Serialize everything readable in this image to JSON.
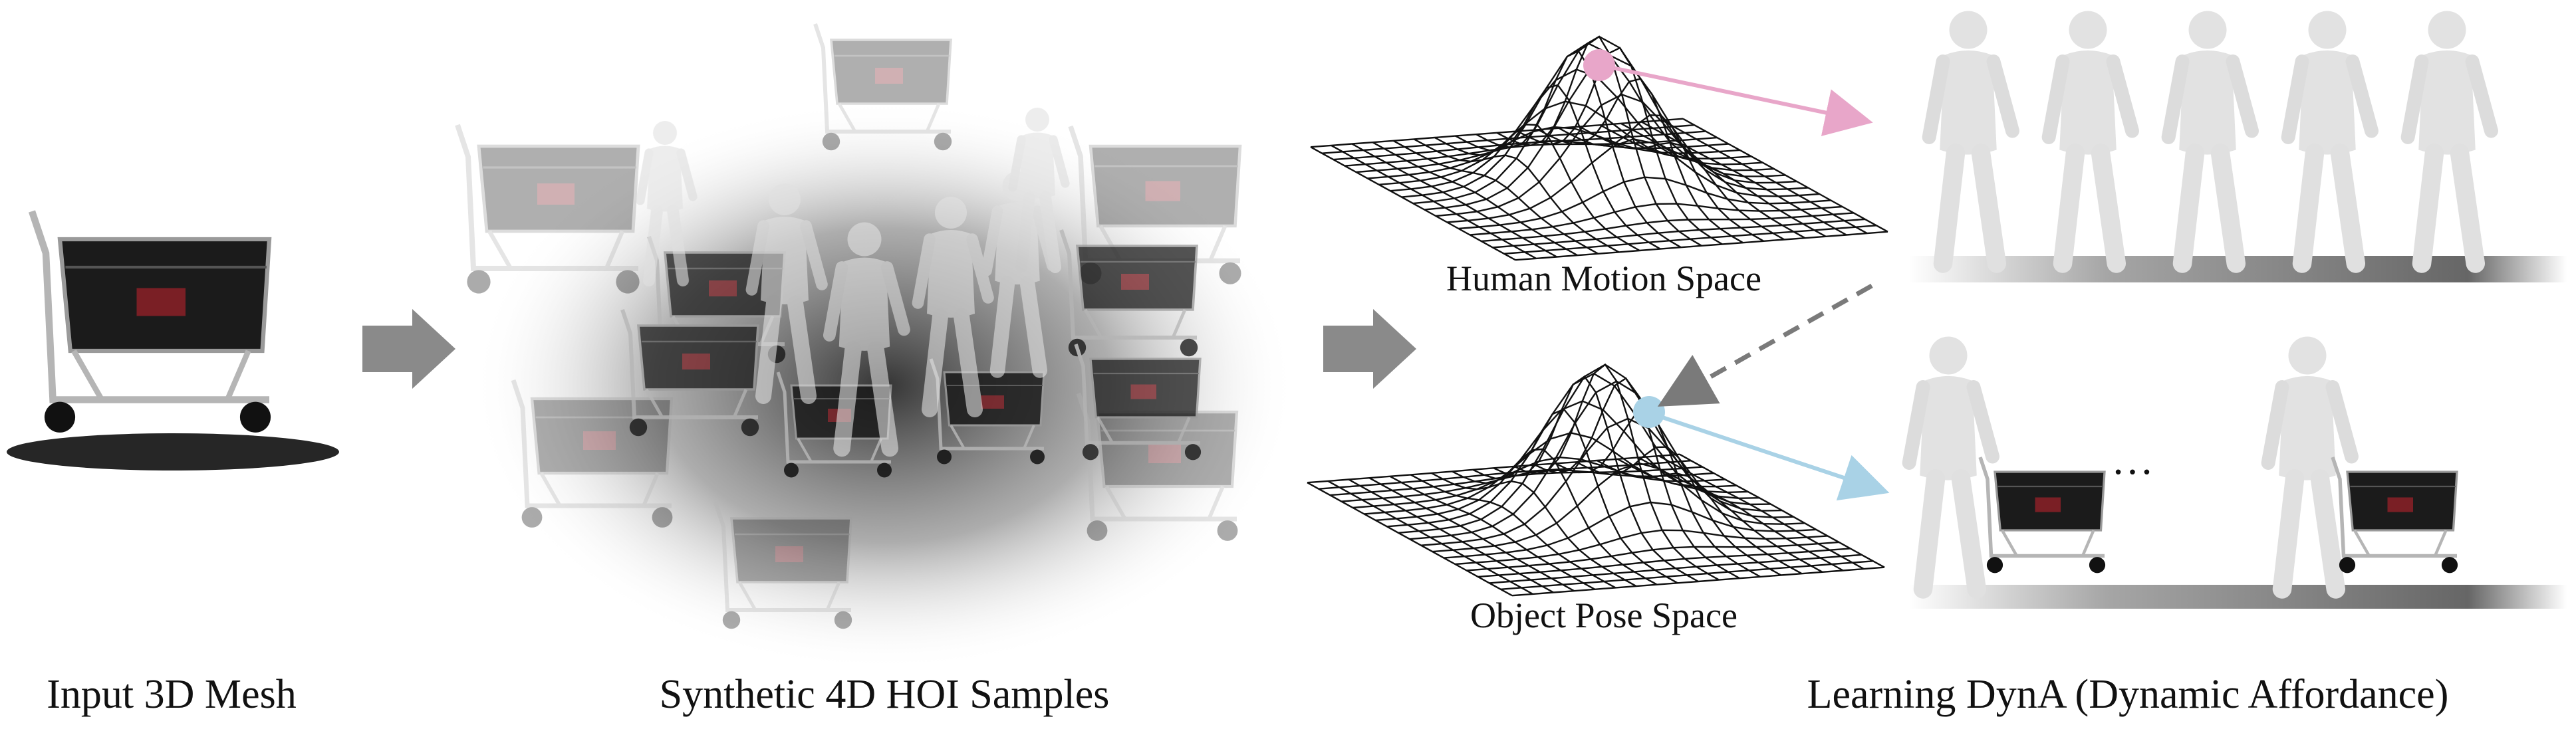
{
  "captions": {
    "input": "Input 3D Mesh",
    "samples": "Synthetic 4D HOI Samples",
    "learning": "Learning DynA (Dynamic Affordance)"
  },
  "spaces": {
    "human": "Human Motion Space",
    "object": "Object Pose Space"
  },
  "ellipsis": "…",
  "colors": {
    "human_point": "#e8a6c9",
    "object_point": "#a9d2e6",
    "arrow_gray": "#8c8c8c",
    "cart_body": "#1b1b1b",
    "human_figure": "#e2e2e2"
  },
  "icons": [
    "shopping-cart-icon",
    "human-figure-icon",
    "gaussian-surface-icon"
  ]
}
